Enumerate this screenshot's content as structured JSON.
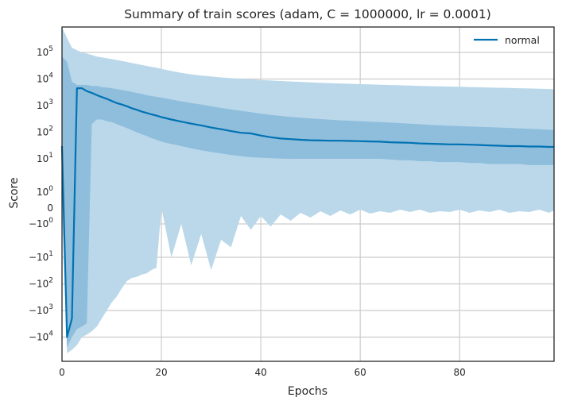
{
  "chart_data": {
    "type": "line",
    "title": "Summary of train scores (adam, C = 1000000, lr = 0.0001)",
    "xlabel": "Epochs",
    "ylabel": "Score",
    "xlim": [
      0,
      99
    ],
    "yscale": "symlog",
    "x_ticks": [
      0,
      20,
      40,
      60,
      80
    ],
    "y_ticks": [
      {
        "value": 100000,
        "base": "10",
        "exp": "5"
      },
      {
        "value": 10000,
        "base": "10",
        "exp": "4"
      },
      {
        "value": 1000,
        "base": "10",
        "exp": "3"
      },
      {
        "value": 100,
        "base": "10",
        "exp": "2"
      },
      {
        "value": 10,
        "base": "10",
        "exp": "1"
      },
      {
        "value": 1,
        "base": "10",
        "exp": "0"
      },
      {
        "value": 0,
        "base": "0",
        "exp": ""
      },
      {
        "value": -1,
        "base": "−10",
        "exp": "0"
      },
      {
        "value": -10,
        "base": "−10",
        "exp": "1"
      },
      {
        "value": -100,
        "base": "−10",
        "exp": "2"
      },
      {
        "value": -1000,
        "base": "−10",
        "exp": "3"
      },
      {
        "value": -10000,
        "base": "−10",
        "exp": "4"
      }
    ],
    "grid": true,
    "legend_position": "top-right",
    "series": [
      {
        "name": "normal",
        "color": "#0072b2",
        "x": [
          0,
          1,
          2,
          3,
          4,
          5,
          6,
          7,
          8,
          9,
          10,
          11,
          12,
          13,
          14,
          15,
          16,
          17,
          18,
          19,
          20,
          22,
          24,
          26,
          28,
          30,
          32,
          34,
          36,
          38,
          40,
          42,
          44,
          46,
          48,
          50,
          52,
          54,
          56,
          58,
          60,
          62,
          64,
          66,
          68,
          70,
          72,
          74,
          76,
          78,
          80,
          82,
          84,
          86,
          88,
          90,
          92,
          94,
          96,
          98,
          99
        ],
        "mean": [
          30,
          -10000,
          -2000,
          4500,
          4500,
          3500,
          3000,
          2500,
          2100,
          1800,
          1500,
          1250,
          1100,
          950,
          800,
          700,
          600,
          530,
          470,
          420,
          370,
          300,
          250,
          210,
          180,
          150,
          130,
          110,
          95,
          90,
          75,
          65,
          58,
          55,
          52,
          50,
          49,
          48,
          48,
          47,
          46,
          45,
          44,
          42,
          41,
          40,
          38,
          37,
          36,
          35,
          35,
          34,
          33,
          32,
          31,
          30,
          30,
          29,
          29,
          28,
          28
        ],
        "std_lower": [
          1,
          -25000,
          -10000,
          -5000,
          -4000,
          -3000,
          200,
          300,
          300,
          260,
          240,
          200,
          170,
          145,
          120,
          100,
          85,
          72,
          60,
          52,
          44,
          36,
          30,
          25,
          21,
          18,
          16,
          14,
          12.5,
          11.5,
          11,
          10.5,
          10.2,
          10,
          10,
          10,
          10,
          10,
          10,
          10,
          10,
          10,
          10,
          9.5,
          9,
          9,
          8.5,
          8.5,
          8,
          8,
          8,
          7.5,
          7.5,
          7,
          7,
          7,
          7,
          6.5,
          6.5,
          6.5,
          6.5
        ],
        "std_upper": [
          70000,
          45000,
          8000,
          6000,
          6000,
          6000,
          5500,
          5500,
          5000,
          4800,
          4500,
          4200,
          3900,
          3600,
          3300,
          3000,
          2750,
          2500,
          2300,
          2150,
          2000,
          1700,
          1450,
          1250,
          1100,
          950,
          820,
          720,
          640,
          570,
          500,
          450,
          410,
          380,
          350,
          330,
          310,
          295,
          280,
          270,
          260,
          250,
          240,
          230,
          220,
          210,
          200,
          190,
          182,
          175,
          170,
          165,
          160,
          155,
          150,
          145,
          140,
          135,
          130,
          125,
          120
        ],
        "minmax_lower": [
          0,
          -40000,
          -30000,
          -20000,
          -10000,
          -8000,
          -6000,
          -4000,
          -2000,
          -1000,
          -500,
          -300,
          -150,
          -80,
          -60,
          -55,
          -45,
          -40,
          -30,
          -25,
          0,
          -10,
          -1,
          -20,
          -2,
          -30,
          -3,
          -5,
          -0.5,
          -1.5,
          -0.5,
          -1.2,
          -0.4,
          -0.8,
          -0.3,
          -0.6,
          -0.2,
          -0.5,
          -0.15,
          -0.4,
          -0.1,
          -0.35,
          -0.2,
          -0.3,
          -0.1,
          -0.25,
          -0.1,
          -0.3,
          -0.2,
          -0.25,
          -0.1,
          -0.3,
          -0.15,
          -0.25,
          -0.1,
          -0.3,
          -0.2,
          -0.25,
          -0.1,
          -0.3,
          -0.15
        ],
        "minmax_upper": [
          900000,
          350000,
          150000,
          120000,
          100000,
          90000,
          80000,
          70000,
          65000,
          60000,
          56000,
          52000,
          48000,
          44000,
          40000,
          37000,
          34000,
          31000,
          28500,
          26500,
          24000,
          20000,
          17000,
          15000,
          13500,
          12500,
          11500,
          10800,
          10200,
          9700,
          9200,
          8800,
          8400,
          8100,
          7800,
          7500,
          7250,
          7000,
          6800,
          6600,
          6400,
          6250,
          6100,
          5950,
          5800,
          5650,
          5500,
          5400,
          5300,
          5200,
          5100,
          5000,
          4900,
          4800,
          4700,
          4600,
          4500,
          4400,
          4300,
          4200,
          4100
        ]
      }
    ],
    "band_colors": {
      "outer": "#bad8ea",
      "inner": "#8fbedd"
    }
  }
}
